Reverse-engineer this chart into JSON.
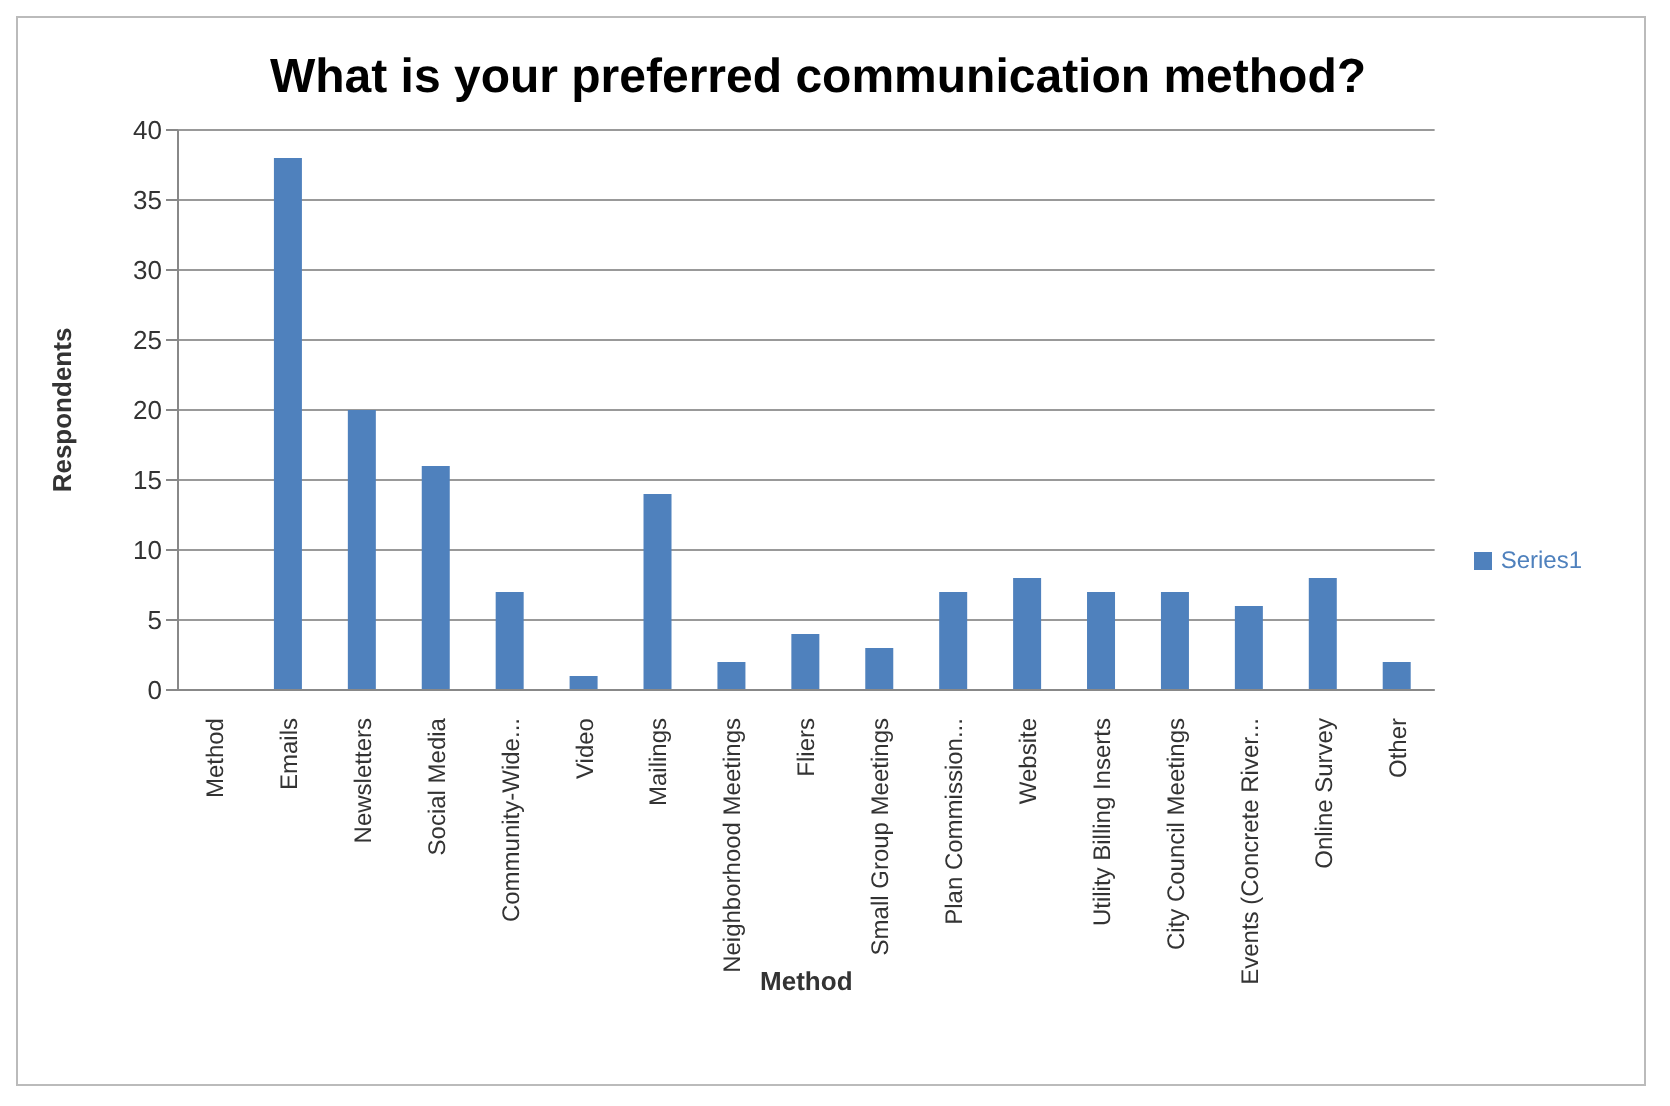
{
  "chart_data": {
    "type": "bar",
    "title": "What is your preferred communication method?",
    "xlabel": "Method",
    "ylabel": "Respondents",
    "categories": [
      "Method",
      "Emails",
      "Newsletters",
      "Social Media",
      "Community-Wide...",
      "Video",
      "Mailings",
      "Neighborhood Meetings",
      "Fliers",
      "Small Group Meetings",
      "Plan Commission...",
      "Website",
      "Utility Billing Inserts",
      "City Council Meetings",
      "Events (Concrete River...",
      "Online Survey",
      "Other"
    ],
    "series": [
      {
        "name": "Series1",
        "color": "#4f81bd",
        "values": [
          0,
          38,
          20,
          16,
          7,
          1,
          14,
          2,
          4,
          3,
          7,
          8,
          7,
          7,
          6,
          8,
          2
        ]
      }
    ],
    "ylim": [
      0,
      40
    ],
    "yticks": [
      0,
      5,
      10,
      15,
      20,
      25,
      30,
      35,
      40
    ],
    "grid": "y",
    "legend": "right"
  }
}
